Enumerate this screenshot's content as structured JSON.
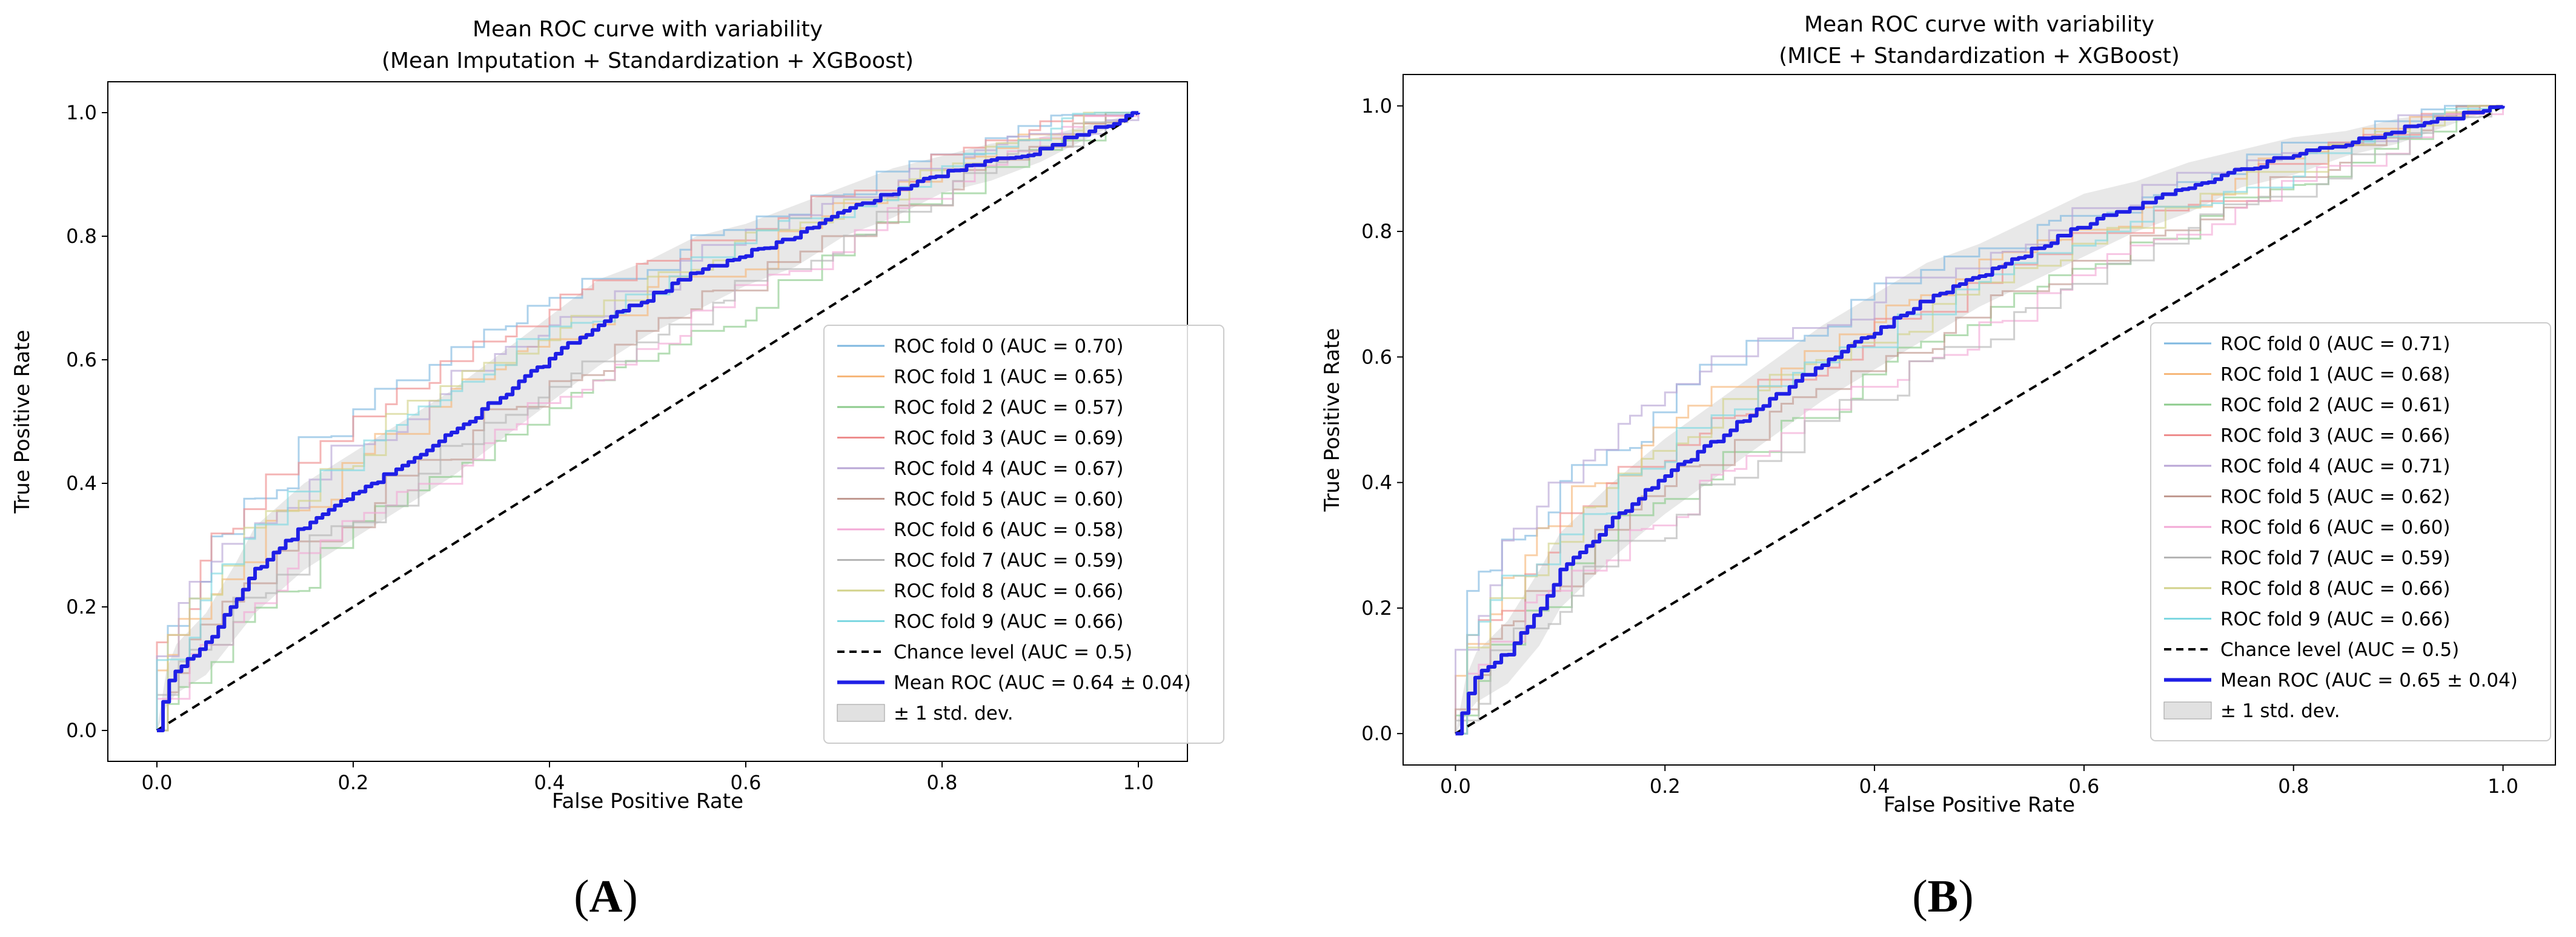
{
  "chart_data": [
    {
      "panel": "A",
      "panel_label_prefix": "(",
      "panel_label_letter": "A",
      "panel_label_suffix": ")",
      "type": "line",
      "title": "Mean ROC curve with variability",
      "subtitle": "(Mean Imputation + Standardization + XGBoost)",
      "xlabel": "False Positive Rate",
      "ylabel": "True Positive Rate",
      "xlim": [
        -0.05,
        1.05
      ],
      "ylim": [
        -0.05,
        1.05
      ],
      "xticks": [
        "0.0",
        "0.2",
        "0.4",
        "0.6",
        "0.8",
        "1.0"
      ],
      "yticks": [
        "0.0",
        "0.2",
        "0.4",
        "0.6",
        "0.8",
        "1.0"
      ],
      "legend_position": "lower right",
      "folds": [
        {
          "name": "ROC fold 0 (AUC = 0.70)",
          "auc": 0.7
        },
        {
          "name": "ROC fold 1 (AUC = 0.65)",
          "auc": 0.65
        },
        {
          "name": "ROC fold 2 (AUC = 0.57)",
          "auc": 0.57
        },
        {
          "name": "ROC fold 3 (AUC = 0.69)",
          "auc": 0.69
        },
        {
          "name": "ROC fold 4 (AUC = 0.67)",
          "auc": 0.67
        },
        {
          "name": "ROC fold 5 (AUC = 0.60)",
          "auc": 0.6
        },
        {
          "name": "ROC fold 6 (AUC = 0.58)",
          "auc": 0.58
        },
        {
          "name": "ROC fold 7 (AUC = 0.59)",
          "auc": 0.59
        },
        {
          "name": "ROC fold 8 (AUC = 0.66)",
          "auc": 0.66
        },
        {
          "name": "ROC fold 9 (AUC = 0.66)",
          "auc": 0.66
        }
      ],
      "chance": {
        "name": "Chance level (AUC = 0.5)",
        "x": [
          0,
          1
        ],
        "y": [
          0,
          1
        ]
      },
      "mean": {
        "name": "Mean ROC (AUC = 0.64 ± 0.04)",
        "x": [
          0,
          0.01,
          0.02,
          0.05,
          0.08,
          0.1,
          0.15,
          0.2,
          0.25,
          0.3,
          0.35,
          0.4,
          0.45,
          0.5,
          0.55,
          0.6,
          0.65,
          0.7,
          0.75,
          0.8,
          0.85,
          0.9,
          0.95,
          1.0
        ],
        "y": [
          0,
          0.07,
          0.1,
          0.14,
          0.21,
          0.26,
          0.33,
          0.38,
          0.43,
          0.48,
          0.54,
          0.6,
          0.66,
          0.7,
          0.74,
          0.77,
          0.8,
          0.84,
          0.87,
          0.9,
          0.92,
          0.94,
          0.97,
          1.0
        ]
      },
      "band": {
        "name": "± 1 std. dev.",
        "std": [
          0,
          0.03,
          0.04,
          0.05,
          0.06,
          0.07,
          0.07,
          0.07,
          0.07,
          0.07,
          0.07,
          0.07,
          0.07,
          0.06,
          0.06,
          0.05,
          0.05,
          0.04,
          0.04,
          0.03,
          0.03,
          0.02,
          0.01,
          0
        ]
      }
    },
    {
      "panel": "B",
      "panel_label_prefix": "(",
      "panel_label_letter": "B",
      "panel_label_suffix": ")",
      "type": "line",
      "title": "Mean ROC curve with variability",
      "subtitle": "(MICE + Standardization + XGBoost)",
      "xlabel": "False Positive Rate",
      "ylabel": "True Positive Rate",
      "xlim": [
        -0.05,
        1.05
      ],
      "ylim": [
        -0.05,
        1.05
      ],
      "xticks": [
        "0.0",
        "0.2",
        "0.4",
        "0.6",
        "0.8",
        "1.0"
      ],
      "yticks": [
        "0.0",
        "0.2",
        "0.4",
        "0.6",
        "0.8",
        "1.0"
      ],
      "legend_position": "lower right",
      "folds": [
        {
          "name": "ROC fold 0 (AUC = 0.71)",
          "auc": 0.71
        },
        {
          "name": "ROC fold 1 (AUC = 0.68)",
          "auc": 0.68
        },
        {
          "name": "ROC fold 2 (AUC = 0.61)",
          "auc": 0.61
        },
        {
          "name": "ROC fold 3 (AUC = 0.66)",
          "auc": 0.66
        },
        {
          "name": "ROC fold 4 (AUC = 0.71)",
          "auc": 0.71
        },
        {
          "name": "ROC fold 5 (AUC = 0.62)",
          "auc": 0.62
        },
        {
          "name": "ROC fold 6 (AUC = 0.60)",
          "auc": 0.6
        },
        {
          "name": "ROC fold 7 (AUC = 0.59)",
          "auc": 0.59
        },
        {
          "name": "ROC fold 8 (AUC = 0.66)",
          "auc": 0.66
        },
        {
          "name": "ROC fold 9 (AUC = 0.66)",
          "auc": 0.66
        }
      ],
      "chance": {
        "name": "Chance level (AUC = 0.5)",
        "x": [
          0,
          1
        ],
        "y": [
          0,
          1
        ]
      },
      "mean": {
        "name": "Mean ROC (AUC = 0.65 ± 0.04)",
        "x": [
          0,
          0.01,
          0.02,
          0.05,
          0.08,
          0.1,
          0.15,
          0.2,
          0.25,
          0.3,
          0.35,
          0.4,
          0.45,
          0.5,
          0.55,
          0.6,
          0.65,
          0.7,
          0.75,
          0.8,
          0.85,
          0.9,
          0.95,
          1.0
        ],
        "y": [
          0,
          0.06,
          0.09,
          0.13,
          0.2,
          0.26,
          0.34,
          0.41,
          0.47,
          0.53,
          0.59,
          0.64,
          0.69,
          0.73,
          0.77,
          0.81,
          0.84,
          0.87,
          0.9,
          0.92,
          0.94,
          0.96,
          0.98,
          1.0
        ]
      },
      "band": {
        "name": "± 1 std. dev.",
        "std": [
          0,
          0.03,
          0.04,
          0.05,
          0.06,
          0.06,
          0.06,
          0.06,
          0.06,
          0.06,
          0.06,
          0.06,
          0.06,
          0.05,
          0.05,
          0.05,
          0.04,
          0.04,
          0.03,
          0.03,
          0.02,
          0.02,
          0.01,
          0
        ]
      }
    }
  ],
  "colors": {
    "folds": [
      "#7fb8e0",
      "#f6b77a",
      "#8ccb8c",
      "#ee8d8d",
      "#b9a6d6",
      "#c19a91",
      "#f3a9d6",
      "#b5b5b5",
      "#d2d28a",
      "#7fd8e2"
    ],
    "mean": "#1f1fe6",
    "chance": "#000000",
    "band": "#bdbdbd",
    "axis": "#000000"
  }
}
